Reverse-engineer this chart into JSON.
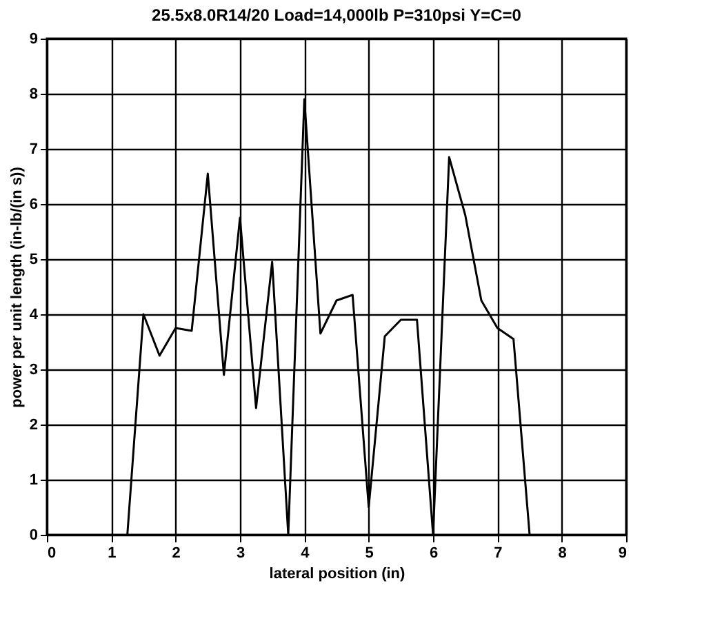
{
  "chart_data": {
    "type": "line",
    "title": "25.5x8.0R14/20 Load=14,000lb P=310psi Y=C=0",
    "xlabel": "lateral position (in)",
    "ylabel": "power per unit length (in-lb/(in s))",
    "x": [
      1.25,
      1.5,
      1.75,
      2,
      2.25,
      2.5,
      2.75,
      3,
      3.25,
      3.5,
      3.75,
      4,
      4.25,
      4.5,
      4.75,
      5,
      5.25,
      5.5,
      5.75,
      6,
      6.25,
      6.5,
      6.75,
      7,
      7.25,
      7.5
    ],
    "series": [
      {
        "color": "#000000",
        "values": [
          0,
          4,
          3.25,
          3.75,
          3.7,
          6.55,
          2.9,
          5.75,
          2.3,
          4.95,
          0,
          7.9,
          3.65,
          4.25,
          4.35,
          0.5,
          3.6,
          3.9,
          3.9,
          0,
          6.85,
          5.8,
          4.25,
          3.75,
          3.55,
          0
        ]
      }
    ],
    "xlim": [
      0,
      9
    ],
    "ylim": [
      0,
      9
    ],
    "xticks": [
      0,
      1,
      2,
      3,
      4,
      5,
      6,
      7,
      8,
      9
    ],
    "yticks": [
      0,
      1,
      2,
      3,
      4,
      5,
      6,
      7,
      8,
      9
    ],
    "grid": true,
    "legend": false,
    "marker": "none",
    "line_style": "solid"
  }
}
